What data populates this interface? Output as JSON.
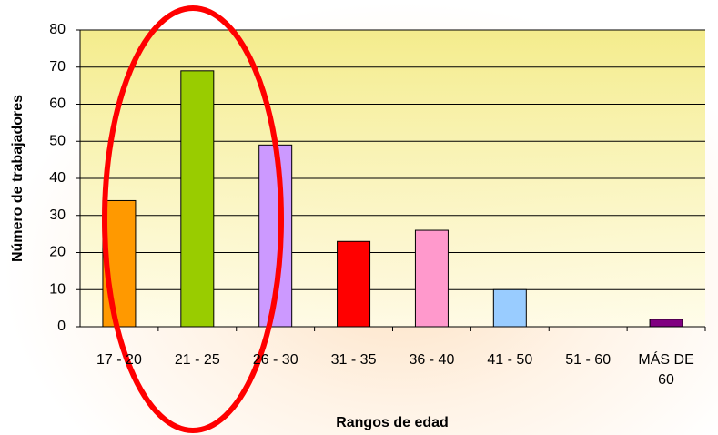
{
  "chart_data": {
    "type": "bar",
    "x_label": "Rangos de edad",
    "y_label": "Número de trabajadores",
    "categories": [
      "17 - 20",
      "21 - 25",
      "26 - 30",
      "31 - 35",
      "36 - 40",
      "41 - 50",
      "51 - 60",
      "MÁS DE 60"
    ],
    "values": [
      34,
      69,
      49,
      23,
      26,
      10,
      0,
      2
    ],
    "colors": [
      "#ff9900",
      "#99cc00",
      "#cc99ff",
      "#ff0000",
      "#ff99cc",
      "#99ccff",
      "#ffffff",
      "#800080"
    ],
    "ylim": [
      0,
      80
    ],
    "yticks": [
      0,
      10,
      20,
      30,
      40,
      50,
      60,
      70,
      80
    ],
    "grid": true
  }
}
